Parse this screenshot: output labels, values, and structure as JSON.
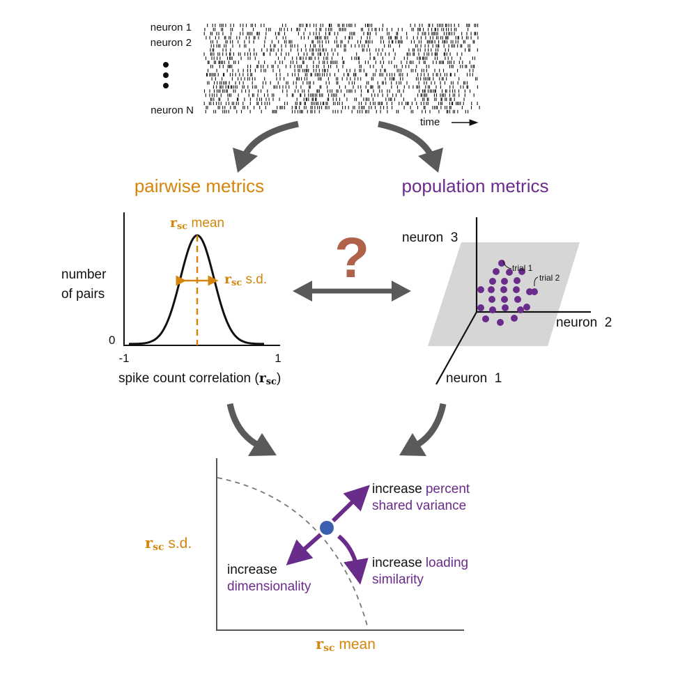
{
  "colors": {
    "pairwise": "#d4860c",
    "population": "#6a2c8a",
    "arrow": "#5a5a5a",
    "question": "#b0614a",
    "dot": "#3c5fb0",
    "plane": "#d6d6d6",
    "ink": "#111111"
  },
  "raster": {
    "row_labels": [
      "neuron 1",
      "neuron 2",
      "neuron N"
    ],
    "ellipsis": "⋮",
    "time_label": "time"
  },
  "headings": {
    "pairwise": "pairwise metrics",
    "population": "population metrics"
  },
  "pairwise_panel": {
    "ylabel_line1": "number",
    "ylabel_line2": "of pairs",
    "y_zero": "0",
    "xtick_min": "-1",
    "xtick_max": "1",
    "xlabel_text": "spike count correlation (",
    "xlabel_symbol": "r",
    "xlabel_sub": "sc",
    "xlabel_close": ")",
    "mean_symbol": "r",
    "mean_sub": "sc",
    "mean_text": " mean",
    "sd_symbol": "r",
    "sd_sub": "sc",
    "sd_text": " s.d."
  },
  "question_mark": "?",
  "population_panel": {
    "axis_neuron3": "neuron  3",
    "axis_neuron2": "neuron  2",
    "axis_neuron1": "neuron  1",
    "trial1": "trial 1",
    "trial2": "trial 2"
  },
  "bottom_panel": {
    "ylabel_symbol": "r",
    "ylabel_sub": "sc",
    "ylabel_text": " s.d.",
    "xlabel_symbol": "r",
    "xlabel_sub": "sc",
    "xlabel_text": " mean",
    "up_right_black": "increase",
    "up_right_purple_1": "percent",
    "up_right_purple_2": "shared variance",
    "down_left_black": "increase",
    "down_left_purple": "dimensionality",
    "down_right_black": "increase",
    "down_right_purple_1": "loading",
    "down_right_purple_2": "similarity"
  }
}
